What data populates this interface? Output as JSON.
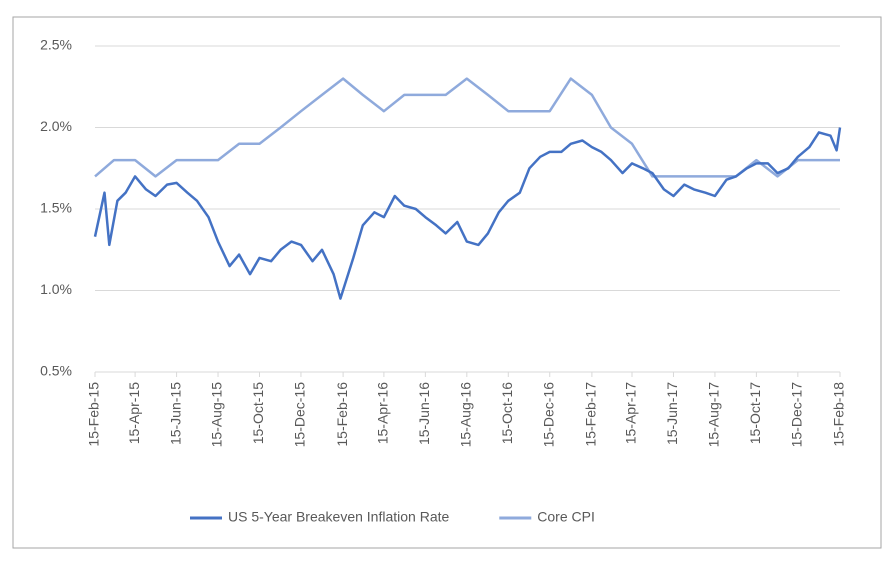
{
  "chart_data": {
    "type": "line",
    "xlim": [
      "2015-02-15",
      "2018-02-15"
    ],
    "xticks": [
      {
        "value": "2015-02-15",
        "label": "15-Feb-15"
      },
      {
        "value": "2015-04-15",
        "label": "15-Apr-15"
      },
      {
        "value": "2015-06-15",
        "label": "15-Jun-15"
      },
      {
        "value": "2015-08-15",
        "label": "15-Aug-15"
      },
      {
        "value": "2015-10-15",
        "label": "15-Oct-15"
      },
      {
        "value": "2015-12-15",
        "label": "15-Dec-15"
      },
      {
        "value": "2016-02-15",
        "label": "15-Feb-16"
      },
      {
        "value": "2016-04-15",
        "label": "15-Apr-16"
      },
      {
        "value": "2016-06-15",
        "label": "15-Jun-16"
      },
      {
        "value": "2016-08-15",
        "label": "15-Aug-16"
      },
      {
        "value": "2016-10-15",
        "label": "15-Oct-16"
      },
      {
        "value": "2016-12-15",
        "label": "15-Dec-16"
      },
      {
        "value": "2017-02-15",
        "label": "15-Feb-17"
      },
      {
        "value": "2017-04-15",
        "label": "15-Apr-17"
      },
      {
        "value": "2017-06-15",
        "label": "15-Jun-17"
      },
      {
        "value": "2017-08-15",
        "label": "15-Aug-17"
      },
      {
        "value": "2017-10-15",
        "label": "15-Oct-17"
      },
      {
        "value": "2017-12-15",
        "label": "15-Dec-17"
      },
      {
        "value": "2018-02-15",
        "label": "15-Feb-18"
      }
    ],
    "ylim": [
      0.5,
      2.5
    ],
    "yticks": [
      {
        "value": 0.5,
        "label": "0.5%"
      },
      {
        "value": 1.0,
        "label": "1.0%"
      },
      {
        "value": 1.5,
        "label": "1.5%"
      },
      {
        "value": 2.0,
        "label": "2.0%"
      },
      {
        "value": 2.5,
        "label": "2.5%"
      }
    ],
    "grid": true,
    "legend": "bottom",
    "series": [
      {
        "name": "US 5-Year Breakeven Inflation Rate",
        "color": "#4472c4",
        "x": [
          "2015-02-15",
          "2015-03-01",
          "2015-03-08",
          "2015-03-20",
          "2015-04-01",
          "2015-04-15",
          "2015-05-01",
          "2015-05-15",
          "2015-06-01",
          "2015-06-15",
          "2015-07-01",
          "2015-07-15",
          "2015-08-01",
          "2015-08-15",
          "2015-09-01",
          "2015-09-15",
          "2015-10-01",
          "2015-10-15",
          "2015-11-01",
          "2015-11-15",
          "2015-12-01",
          "2015-12-15",
          "2016-01-01",
          "2016-01-15",
          "2016-02-01",
          "2016-02-11",
          "2016-03-01",
          "2016-03-15",
          "2016-04-01",
          "2016-04-15",
          "2016-05-01",
          "2016-05-15",
          "2016-06-01",
          "2016-06-15",
          "2016-07-01",
          "2016-07-15",
          "2016-08-01",
          "2016-08-15",
          "2016-09-01",
          "2016-09-15",
          "2016-10-01",
          "2016-10-15",
          "2016-11-01",
          "2016-11-15",
          "2016-12-01",
          "2016-12-15",
          "2017-01-01",
          "2017-01-15",
          "2017-02-01",
          "2017-02-15",
          "2017-03-01",
          "2017-03-15",
          "2017-04-01",
          "2017-04-15",
          "2017-05-01",
          "2017-05-15",
          "2017-06-01",
          "2017-06-15",
          "2017-07-01",
          "2017-07-15",
          "2017-08-01",
          "2017-08-15",
          "2017-09-01",
          "2017-09-15",
          "2017-10-01",
          "2017-10-15",
          "2017-11-01",
          "2017-11-15",
          "2017-12-01",
          "2017-12-15",
          "2018-01-01",
          "2018-01-15",
          "2018-02-01",
          "2018-02-10",
          "2018-02-15"
        ],
        "values": [
          1.33,
          1.6,
          1.28,
          1.55,
          1.6,
          1.7,
          1.62,
          1.58,
          1.65,
          1.66,
          1.6,
          1.55,
          1.45,
          1.3,
          1.15,
          1.22,
          1.1,
          1.2,
          1.18,
          1.25,
          1.3,
          1.28,
          1.18,
          1.25,
          1.1,
          0.95,
          1.2,
          1.4,
          1.48,
          1.45,
          1.58,
          1.52,
          1.5,
          1.45,
          1.4,
          1.35,
          1.42,
          1.3,
          1.28,
          1.35,
          1.48,
          1.55,
          1.6,
          1.75,
          1.82,
          1.85,
          1.85,
          1.9,
          1.92,
          1.88,
          1.85,
          1.8,
          1.72,
          1.78,
          1.75,
          1.72,
          1.62,
          1.58,
          1.65,
          1.62,
          1.6,
          1.58,
          1.68,
          1.7,
          1.75,
          1.78,
          1.78,
          1.72,
          1.75,
          1.82,
          1.88,
          1.97,
          1.95,
          1.86,
          2.0
        ]
      },
      {
        "name": "Core CPI",
        "color": "#8faadc",
        "x": [
          "2015-02-15",
          "2015-03-15",
          "2015-04-15",
          "2015-05-15",
          "2015-06-15",
          "2015-07-15",
          "2015-08-15",
          "2015-09-15",
          "2015-10-15",
          "2015-11-15",
          "2015-12-15",
          "2016-01-15",
          "2016-02-15",
          "2016-03-15",
          "2016-04-15",
          "2016-05-15",
          "2016-06-15",
          "2016-07-15",
          "2016-08-15",
          "2016-09-15",
          "2016-10-15",
          "2016-11-15",
          "2016-12-15",
          "2017-01-15",
          "2017-02-15",
          "2017-03-15",
          "2017-04-15",
          "2017-05-15",
          "2017-06-15",
          "2017-07-15",
          "2017-08-15",
          "2017-09-15",
          "2017-10-15",
          "2017-11-15",
          "2017-12-15",
          "2018-01-15",
          "2018-02-15"
        ],
        "values": [
          1.7,
          1.8,
          1.8,
          1.7,
          1.8,
          1.8,
          1.8,
          1.9,
          1.9,
          2.0,
          2.1,
          2.2,
          2.3,
          2.2,
          2.1,
          2.2,
          2.2,
          2.2,
          2.3,
          2.2,
          2.1,
          2.1,
          2.1,
          2.3,
          2.2,
          2.0,
          1.9,
          1.7,
          1.7,
          1.7,
          1.7,
          1.7,
          1.8,
          1.7,
          1.8,
          1.8,
          1.8
        ]
      }
    ]
  }
}
